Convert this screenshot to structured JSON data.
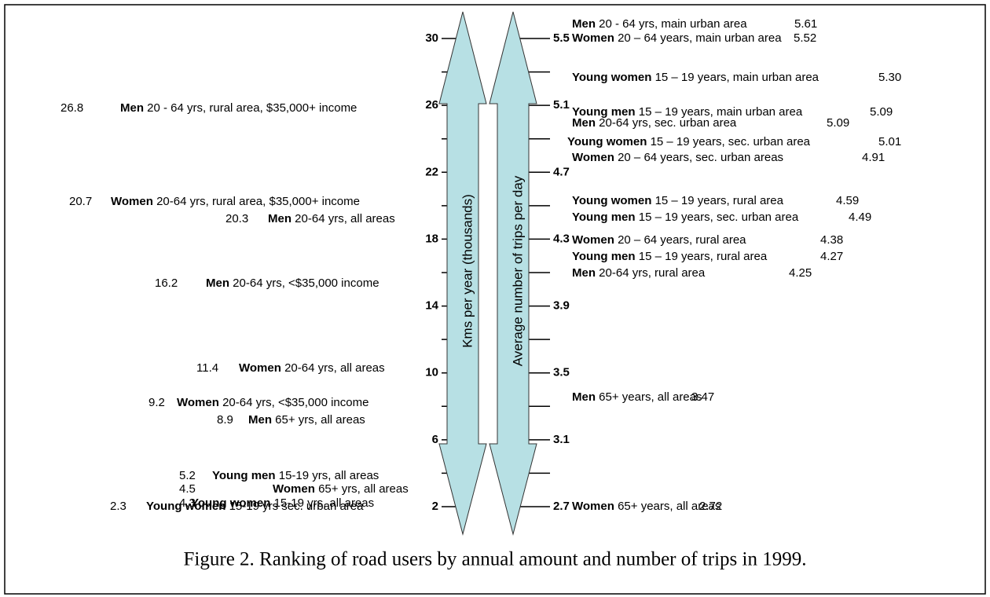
{
  "left_axis": {
    "title": "Kms per year (thousands)",
    "ticks": [
      "30",
      "26",
      "22",
      "18",
      "14",
      "10",
      "6",
      "2"
    ]
  },
  "right_axis": {
    "title": "Average number of trips per day",
    "ticks": [
      "5.5",
      "5.1",
      "4.7",
      "4.3",
      "3.9",
      "3.5",
      "3.1",
      "2.7"
    ]
  },
  "left_items": [
    {
      "value": "26.8",
      "group": "Men",
      "text": "20 - 64 yrs, rural area, $35,000+ income"
    },
    {
      "value": "20.7",
      "group": "Women",
      "text": "20-64 yrs, rural area,  $35,000+ income"
    },
    {
      "value": "20.3",
      "group": "Men",
      "text": "20-64 yrs, all areas"
    },
    {
      "value": "16.2",
      "group": "Men",
      "text": "20-64 yrs, <$35,000 income"
    },
    {
      "value": "11.4",
      "group": "Women",
      "text": "20-64 yrs, all areas"
    },
    {
      "value": "9.2",
      "group": "Women",
      "text": "20-64 yrs, <$35,000 income"
    },
    {
      "value": "8.9",
      "group": "Men",
      "text": "65+ yrs, all areas"
    },
    {
      "value": "5.2",
      "group": "Young men",
      "text": "15-19 yrs, all areas"
    },
    {
      "value": "4.5",
      "group": "Women",
      "text": "65+ yrs, all areas"
    },
    {
      "value": "4.3",
      "group": "Young women",
      "text": "15-19 yrs, all areas"
    },
    {
      "value": "2.3",
      "group": "Young women",
      "text": "15-19 yrs sec. urban area"
    }
  ],
  "right_items": [
    {
      "group": "Men",
      "text": "20 - 64 yrs, main urban area",
      "value": "5.61"
    },
    {
      "group": "Women",
      "text": "20 – 64 years, main urban area",
      "value": "5.52"
    },
    {
      "group": "Young women",
      "text": "15 – 19 years, main urban area",
      "value": "5.30"
    },
    {
      "group": "Young men",
      "text": "15 – 19 years, main urban area",
      "value": "5.09"
    },
    {
      "group": "Men",
      "text": "20-64 yrs, sec. urban area",
      "value": "5.09"
    },
    {
      "group": "Young women",
      "text": "15 – 19 years, sec. urban area",
      "value": "5.01"
    },
    {
      "group": "Women",
      "text": "20 – 64 years, sec. urban areas",
      "value": "4.91"
    },
    {
      "group": "Young women",
      "text": "15 – 19 years, rural area",
      "value": "4.59"
    },
    {
      "group": "Young men",
      "text": "15 – 19 years, sec. urban area",
      "value": "4.49"
    },
    {
      "group": "Women",
      "text": "20 – 64 years, rural area",
      "value": "4.38"
    },
    {
      "group": "Young men",
      "text": "15 – 19 years, rural area",
      "value": "4.27"
    },
    {
      "group": "Men",
      "text": "20-64 yrs, rural area",
      "value": "4.25"
    },
    {
      "group": "Men",
      "text": "65+ years, all areas",
      "value": "3.47"
    },
    {
      "group": "Women",
      "text": "65+ years, all areas",
      "value": "2.72"
    }
  ],
  "caption": "Figure 2.  Ranking of road users by annual amount and number of trips in 1999."
}
